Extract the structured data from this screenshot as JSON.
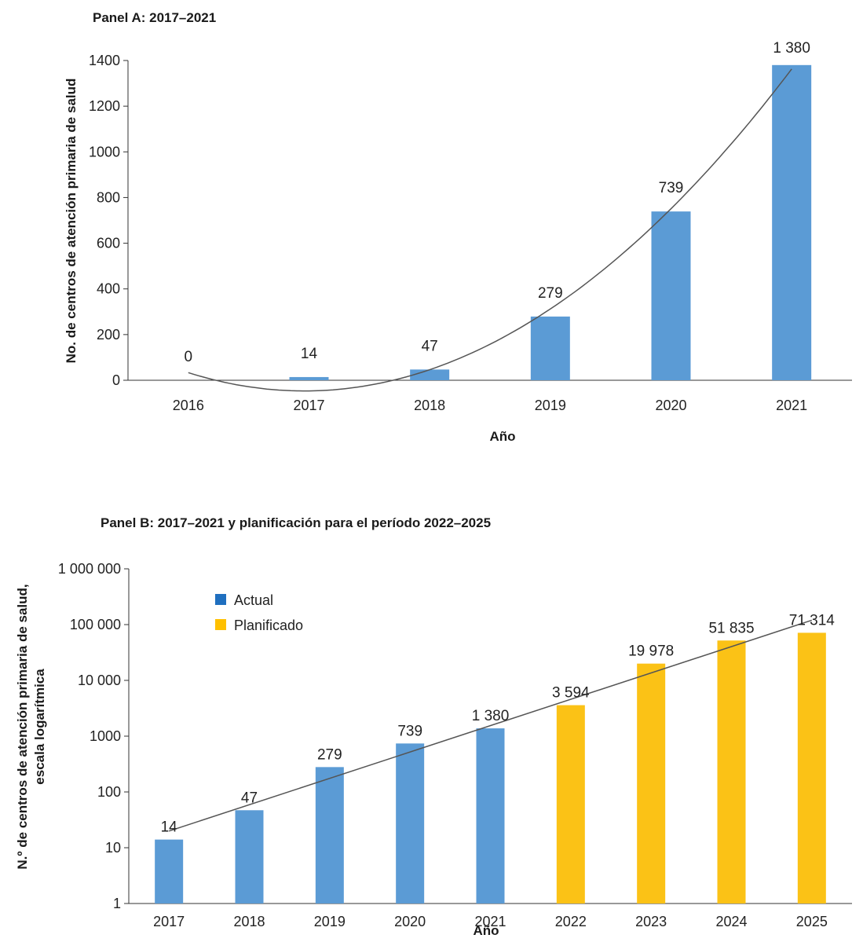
{
  "chart_data": [
    {
      "type": "bar",
      "title": "Panel A: 2017–2021",
      "xlabel": "Año",
      "ylabel": "No. de centros de atención primaria de salud",
      "categories": [
        "2016",
        "2017",
        "2018",
        "2019",
        "2020",
        "2021"
      ],
      "values": [
        0,
        14,
        47,
        279,
        739,
        1380
      ],
      "data_labels": [
        "0",
        "14",
        "47",
        "279",
        "739",
        "1 380"
      ],
      "ylim": [
        0,
        1400
      ],
      "yticks": [
        0,
        200,
        400,
        600,
        800,
        1000,
        1200,
        1400
      ],
      "ytick_labels": [
        "0",
        "200",
        "400",
        "600",
        "800",
        "1000",
        "1200",
        "1400"
      ],
      "trendline": "polynomial",
      "bar_color": "#5b9bd5",
      "grid": false
    },
    {
      "type": "bar",
      "title": "Panel B: 2017–2021 y planificación para el período 2022–2025",
      "xlabel": "Año",
      "ylabel": [
        "N.º de centros de atención primaria de salud,",
        "escala logarítmica"
      ],
      "log_scale": true,
      "categories": [
        "2017",
        "2018",
        "2019",
        "2020",
        "2021",
        "2022",
        "2023",
        "2024",
        "2025"
      ],
      "values": [
        14,
        47,
        279,
        739,
        1380,
        3594,
        19978,
        51835,
        71314
      ],
      "data_labels": [
        "14",
        "47",
        "279",
        "739",
        "1 380",
        "3 594",
        "19 978",
        "51 835",
        "71 314"
      ],
      "series_kind": [
        "Actual",
        "Actual",
        "Actual",
        "Actual",
        "Actual",
        "Planificado",
        "Planificado",
        "Planificado",
        "Planificado"
      ],
      "ylim": [
        1,
        1000000
      ],
      "yticks": [
        1,
        10,
        100,
        1000,
        10000,
        100000,
        1000000
      ],
      "ytick_labels": [
        "1",
        "10",
        "100",
        "1000",
        "10 000",
        "100 000",
        "1 000 000"
      ],
      "legend": [
        {
          "name": "Actual",
          "color": "#1f6fbf"
        },
        {
          "name": "Planificado",
          "color": "#ffc000"
        }
      ],
      "legend_position": "top-left",
      "colors": {
        "Actual": "#5b9bd5",
        "Planificado": "#fbc216"
      },
      "trendline": "exponential",
      "grid": false
    }
  ]
}
